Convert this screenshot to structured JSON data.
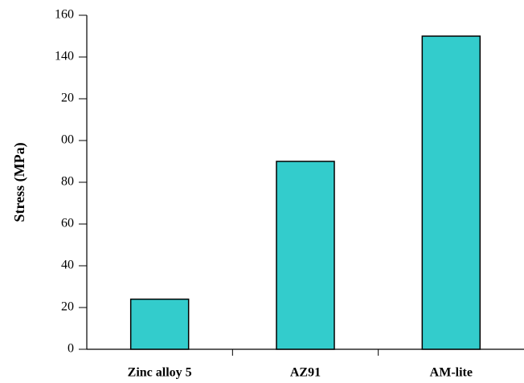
{
  "chart_data": {
    "type": "bar",
    "y_label": "Stress (MPa)",
    "categories": [
      "Zinc alloy 5",
      "AZ91",
      "AM-lite"
    ],
    "values": [
      24,
      90,
      150
    ],
    "color": "#33cccc",
    "ylim": [
      0,
      160
    ],
    "yticks": [
      0,
      20,
      40,
      60,
      80,
      {
        "value": 100,
        "label": "00"
      },
      {
        "value": 120,
        "label": "20"
      },
      140,
      160
    ],
    "grid": false
  }
}
